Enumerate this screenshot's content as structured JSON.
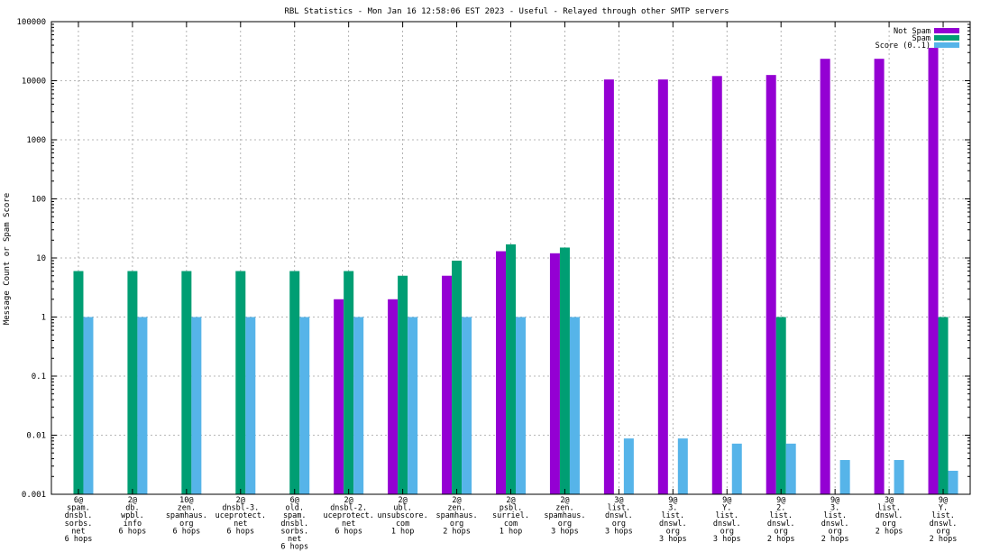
{
  "chart_data": {
    "type": "bar",
    "title": "RBL Statistics - Mon Jan 16 12:58:06 EST 2023 - Useful - Relayed through other SMTP servers",
    "xlabel": "",
    "ylabel": "Message Count or Spam Score",
    "yscale": "log",
    "ylim": [
      0.001,
      100000
    ],
    "yticks": [
      "0.001",
      "0.01",
      "0.1",
      "1",
      "10",
      "100",
      "1000",
      "10000",
      "100000"
    ],
    "grid": true,
    "legend_position": "top-right",
    "categories": [
      [
        "6@",
        "spam.",
        "dnsbl.",
        "sorbs.",
        "net",
        "6 hops"
      ],
      [
        "2@",
        "db.",
        "wpbl.",
        "info",
        "6 hops"
      ],
      [
        "10@",
        "zen.",
        "spamhaus.",
        "org",
        "6 hops"
      ],
      [
        "2@",
        "dnsbl-3.",
        "uceprotect.",
        "net",
        "6 hops"
      ],
      [
        "6@",
        "old.",
        "spam.",
        "dnsbl.",
        "sorbs.",
        "net",
        "6 hops"
      ],
      [
        "2@",
        "dnsbl-2.",
        "uceprotect.",
        "net",
        "6 hops"
      ],
      [
        "2@",
        "ubl.",
        "unsubscore.",
        "com",
        "1 hop"
      ],
      [
        "2@",
        "zen.",
        "spamhaus.",
        "org",
        "2 hops"
      ],
      [
        "2@",
        "psbl.",
        "surriel.",
        "com",
        "1 hop"
      ],
      [
        "2@",
        "zen.",
        "spamhaus.",
        "org",
        "3 hops"
      ],
      [
        "3@",
        "list.",
        "dnswl.",
        "org",
        "3 hops"
      ],
      [
        "9@",
        "3.",
        "list.",
        "dnswl.",
        "org",
        "3 hops"
      ],
      [
        "9@",
        "Y.",
        "list.",
        "dnswl.",
        "org",
        "3 hops"
      ],
      [
        "9@",
        "2.",
        "list.",
        "dnswl.",
        "org",
        "2 hops"
      ],
      [
        "9@",
        "3.",
        "list.",
        "dnswl.",
        "org",
        "2 hops"
      ],
      [
        "3@",
        "list.",
        "dnswl.",
        "org",
        "2 hops"
      ],
      [
        "9@",
        "Y.",
        "list.",
        "dnswl.",
        "org",
        "2 hops"
      ]
    ],
    "series": [
      {
        "name": "Not Spam",
        "color": "#9400d3",
        "values": [
          null,
          null,
          null,
          null,
          null,
          2,
          2,
          5,
          13,
          12,
          10500,
          10500,
          12000,
          12500,
          23500,
          23500,
          36000
        ]
      },
      {
        "name": "Spam",
        "color": "#009e73",
        "values": [
          6,
          6,
          6,
          6,
          6,
          6,
          5,
          9,
          17,
          15,
          null,
          null,
          null,
          1,
          null,
          null,
          1
        ]
      },
      {
        "name": "Score (0..1)",
        "color": "#56b4e9",
        "values": [
          1,
          1,
          1,
          1,
          1,
          1,
          1,
          1,
          1,
          1,
          0.0088,
          0.0088,
          0.0072,
          0.0072,
          0.0038,
          0.0038,
          0.0025
        ]
      }
    ]
  }
}
